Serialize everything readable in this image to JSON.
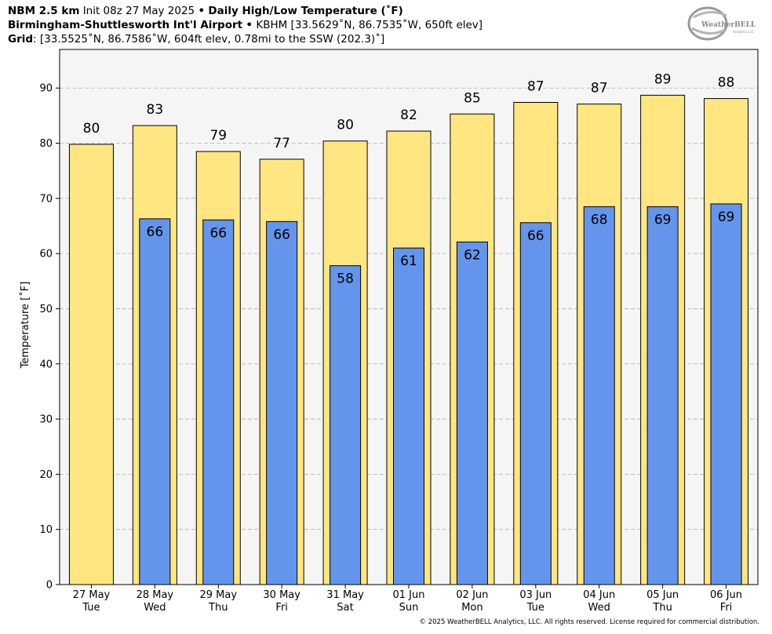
{
  "header": {
    "model": "NBM 2.5 km",
    "init": "Init 08z 27 May 2025",
    "bullet": "•",
    "product": "Daily High/Low Temperature (˚F)",
    "station_name": "Birmingham-Shuttlesworth Int'l Airport",
    "station_info": "KBHM [33.5629˚N, 86.7535˚W, 650ft elev]",
    "grid_label": "Grid",
    "grid_info": ": [33.5525˚N, 86.7586˚W, 604ft elev, 0.78mi to the SSW (202.3)˚]"
  },
  "logo": {
    "text_main": "WeatherBELL",
    "text_sub": "Analytics LLC"
  },
  "copyright": "© 2025 WeatherBELL Analytics, LLC. All rights reserved. License required for commercial distribution.",
  "colors": {
    "high": "#ffe680",
    "low": "#6495ed",
    "plot_bg": "#f5f5f5",
    "grid": "#b0b0b0"
  },
  "chart_data": {
    "type": "bar",
    "ylabel": "Temperature [˚F]",
    "ylim": [
      0,
      97
    ],
    "yticks": [
      0,
      10,
      20,
      30,
      40,
      50,
      60,
      70,
      80,
      90
    ],
    "grid": true,
    "categories": [
      {
        "date": "27 May",
        "day": "Tue"
      },
      {
        "date": "28 May",
        "day": "Wed"
      },
      {
        "date": "29 May",
        "day": "Thu"
      },
      {
        "date": "30 May",
        "day": "Fri"
      },
      {
        "date": "31 May",
        "day": "Sat"
      },
      {
        "date": "01 Jun",
        "day": "Sun"
      },
      {
        "date": "02 Jun",
        "day": "Mon"
      },
      {
        "date": "03 Jun",
        "day": "Tue"
      },
      {
        "date": "04 Jun",
        "day": "Wed"
      },
      {
        "date": "05 Jun",
        "day": "Thu"
      },
      {
        "date": "06 Jun",
        "day": "Fri"
      }
    ],
    "series": [
      {
        "role": "high",
        "values": [
          79.8,
          83.2,
          78.5,
          77.1,
          80.4,
          82.2,
          85.3,
          87.4,
          87.1,
          88.7,
          88.1
        ],
        "labels": [
          "80",
          "83",
          "79",
          "77",
          "80",
          "82",
          "85",
          "87",
          "87",
          "89",
          "88"
        ]
      },
      {
        "role": "low",
        "values": [
          null,
          66.3,
          66.1,
          65.8,
          57.8,
          61.0,
          62.1,
          65.6,
          68.5,
          68.5,
          69.0
        ],
        "labels": [
          null,
          "66",
          "66",
          "66",
          "58",
          "61",
          "62",
          "66",
          "68",
          "69",
          "69"
        ]
      }
    ]
  }
}
